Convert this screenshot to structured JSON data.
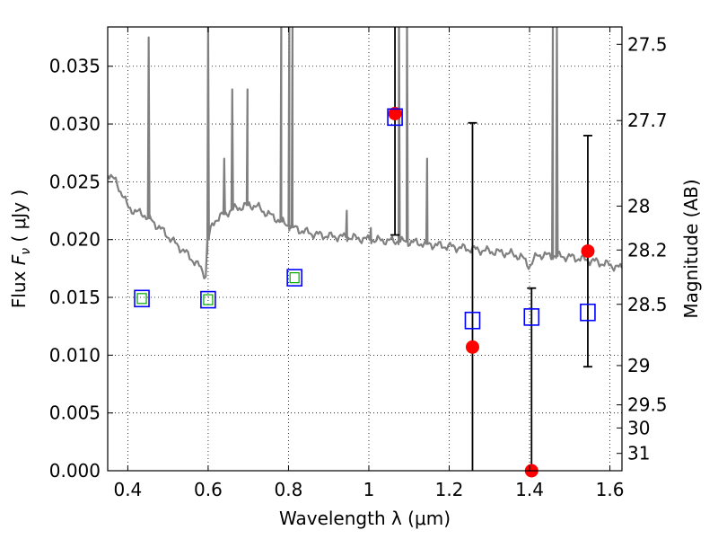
{
  "chart_data": {
    "type": "scatter",
    "xlabel": "Wavelength  λ (μm)",
    "ylabel": "Flux  F_ν  ( μJy )",
    "ylabel_right": "Magnitude (AB)",
    "xlim": [
      0.35,
      1.63
    ],
    "ylim": [
      0.0,
      0.0384
    ],
    "grid": true,
    "x_ticks": [
      0.4,
      0.6,
      0.8,
      1.0,
      1.2,
      1.4,
      1.6
    ],
    "x_tick_labels": [
      "0.4",
      "0.6",
      "0.8",
      "1",
      "1.2",
      "1.4",
      "1.6"
    ],
    "y_ticks": [
      0.0,
      0.005,
      0.01,
      0.015,
      0.02,
      0.025,
      0.03,
      0.035
    ],
    "y_tick_labels": [
      "0.000",
      "0.005",
      "0.010",
      "0.015",
      "0.020",
      "0.025",
      "0.030",
      "0.035"
    ],
    "right_ticks": [
      {
        "flux": 0.0369,
        "label": "27.5"
      },
      {
        "flux": 0.0303,
        "label": "27.7"
      },
      {
        "flux": 0.0229,
        "label": "28"
      },
      {
        "flux": 0.0191,
        "label": "28.2"
      },
      {
        "flux": 0.0144,
        "label": "28.5"
      },
      {
        "flux": 0.0091,
        "label": "29"
      },
      {
        "flux": 0.0057,
        "label": "29.5"
      },
      {
        "flux": 0.0037,
        "label": "30"
      },
      {
        "flux": 0.0015,
        "label": "31"
      }
    ],
    "model_spectrum": {
      "name": "",
      "color": "#808080",
      "continuum": [
        [
          0.35,
          0.0258
        ],
        [
          0.37,
          0.025
        ],
        [
          0.39,
          0.0237
        ],
        [
          0.4,
          0.0228
        ],
        [
          0.42,
          0.0224
        ],
        [
          0.44,
          0.0222
        ],
        [
          0.46,
          0.0216
        ],
        [
          0.48,
          0.021
        ],
        [
          0.5,
          0.0203
        ],
        [
          0.52,
          0.0196
        ],
        [
          0.54,
          0.019
        ],
        [
          0.56,
          0.0183
        ],
        [
          0.58,
          0.0176
        ],
        [
          0.595,
          0.0168
        ],
        [
          0.6,
          0.02
        ],
        [
          0.61,
          0.0212
        ],
        [
          0.62,
          0.0218
        ],
        [
          0.64,
          0.0222
        ],
        [
          0.66,
          0.0226
        ],
        [
          0.68,
          0.0228
        ],
        [
          0.7,
          0.023
        ],
        [
          0.72,
          0.0229
        ],
        [
          0.74,
          0.0224
        ],
        [
          0.76,
          0.022
        ],
        [
          0.78,
          0.0216
        ],
        [
          0.8,
          0.0212
        ],
        [
          0.83,
          0.0208
        ],
        [
          0.86,
          0.0205
        ],
        [
          0.9,
          0.0203
        ],
        [
          0.95,
          0.0202
        ],
        [
          1.0,
          0.02
        ],
        [
          1.05,
          0.0199
        ],
        [
          1.1,
          0.0198
        ],
        [
          1.15,
          0.0196
        ],
        [
          1.2,
          0.0194
        ],
        [
          1.25,
          0.0192
        ],
        [
          1.3,
          0.019
        ],
        [
          1.35,
          0.0188
        ],
        [
          1.38,
          0.0185
        ],
        [
          1.4,
          0.0177
        ],
        [
          1.42,
          0.0187
        ],
        [
          1.45,
          0.0186
        ],
        [
          1.5,
          0.0185
        ],
        [
          1.55,
          0.0182
        ],
        [
          1.6,
          0.0178
        ],
        [
          1.63,
          0.0175
        ]
      ],
      "emission_lines": [
        {
          "x": 0.452,
          "peak": 0.0375
        },
        {
          "x": 0.6,
          "peak": 0.039
        },
        {
          "x": 0.64,
          "peak": 0.027
        },
        {
          "x": 0.66,
          "peak": 0.033
        },
        {
          "x": 0.698,
          "peak": 0.033
        },
        {
          "x": 0.782,
          "peak": 0.039
        },
        {
          "x": 0.802,
          "peak": 0.039
        },
        {
          "x": 0.81,
          "peak": 0.039
        },
        {
          "x": 0.945,
          "peak": 0.0225
        },
        {
          "x": 1.005,
          "peak": 0.021
        },
        {
          "x": 1.075,
          "peak": 0.039
        },
        {
          "x": 1.095,
          "peak": 0.039
        },
        {
          "x": 1.145,
          "peak": 0.027
        },
        {
          "x": 1.458,
          "peak": 0.039
        },
        {
          "x": 1.468,
          "peak": 0.039
        }
      ]
    },
    "series": [
      {
        "name": "",
        "marker": "filled-circle",
        "color": "#ff0000",
        "points": [
          {
            "x": 1.065,
            "y": 0.0309,
            "yerr_low": 0.0204,
            "yerr_high": 0.0384
          },
          {
            "x": 1.258,
            "y": 0.0107,
            "yerr_low": 0.0,
            "yerr_high": 0.0301
          },
          {
            "x": 1.405,
            "y": 0.0,
            "yerr_low": 0.0,
            "yerr_high": 0.0158
          },
          {
            "x": 1.545,
            "y": 0.019,
            "yerr_low": 0.009,
            "yerr_high": 0.029
          }
        ]
      },
      {
        "name": "",
        "marker": "open-square",
        "color": "#0000ff",
        "points": [
          {
            "x": 0.435,
            "y": 0.0149
          },
          {
            "x": 0.6,
            "y": 0.0148
          },
          {
            "x": 0.815,
            "y": 0.0167
          },
          {
            "x": 1.065,
            "y": 0.0306
          },
          {
            "x": 1.258,
            "y": 0.013
          },
          {
            "x": 1.405,
            "y": 0.0133
          },
          {
            "x": 1.545,
            "y": 0.0137
          }
        ]
      },
      {
        "name": "",
        "marker": "small-open-square",
        "color": "#00aa00",
        "points": [
          {
            "x": 0.435,
            "y": 0.0149
          },
          {
            "x": 0.6,
            "y": 0.0148
          },
          {
            "x": 0.815,
            "y": 0.0167
          }
        ]
      }
    ]
  }
}
